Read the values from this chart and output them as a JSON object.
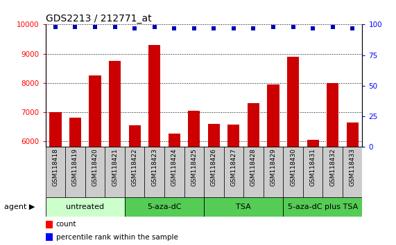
{
  "title": "GDS2213 / 212771_at",
  "categories": [
    "GSM118418",
    "GSM118419",
    "GSM118420",
    "GSM118421",
    "GSM118422",
    "GSM118423",
    "GSM118424",
    "GSM118425",
    "GSM118426",
    "GSM118427",
    "GSM118428",
    "GSM118429",
    "GSM118430",
    "GSM118431",
    "GSM118432",
    "GSM118433"
  ],
  "counts": [
    7000,
    6800,
    8250,
    8750,
    6550,
    9300,
    6250,
    7050,
    6600,
    6580,
    7300,
    7950,
    8900,
    6050,
    8000,
    6630
  ],
  "percentile_ranks": [
    98,
    98,
    98,
    98,
    97,
    98,
    97,
    97,
    97,
    97,
    97,
    98,
    98,
    97,
    98,
    97
  ],
  "bar_color": "#cc0000",
  "dot_color": "#0000bb",
  "ylim_left": [
    5800,
    10000
  ],
  "ylim_right": [
    0,
    100
  ],
  "yticks_left": [
    6000,
    7000,
    8000,
    9000,
    10000
  ],
  "yticks_right": [
    0,
    25,
    50,
    75,
    100
  ],
  "sample_bg_color": "#cccccc",
  "groups": [
    {
      "label": "untreated",
      "start": 0,
      "end": 3,
      "color": "#ccffcc"
    },
    {
      "label": "5-aza-dC",
      "start": 4,
      "end": 7,
      "color": "#55cc55"
    },
    {
      "label": "TSA",
      "start": 8,
      "end": 11,
      "color": "#55cc55"
    },
    {
      "label": "5-aza-dC plus TSA",
      "start": 12,
      "end": 15,
      "color": "#55cc55"
    }
  ],
  "legend_count_label": "count",
  "legend_pct_label": "percentile rank within the sample",
  "title_fontsize": 10,
  "tick_fontsize": 7.5,
  "label_fontsize": 6.5,
  "group_fontsize": 8,
  "agent_fontsize": 8
}
